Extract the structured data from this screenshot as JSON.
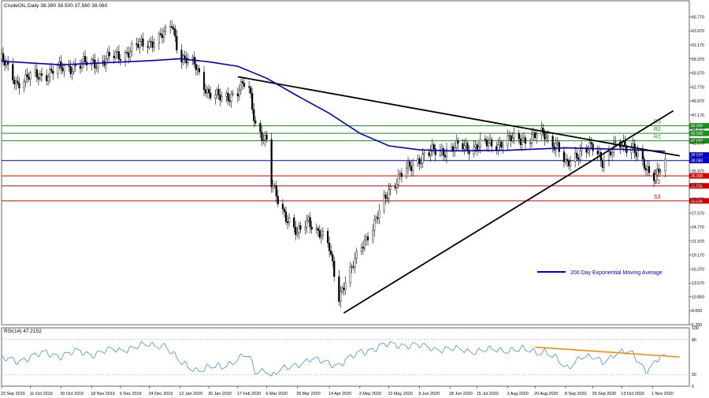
{
  "chart_data": [
    {
      "type": "candlestick",
      "title": "CrudeOIL,Daily  38.390 38.500 37.560 38.060",
      "ylim": [
        5.25,
        69.2
      ],
      "yticks": [
        "66.770",
        "63.970",
        "61.170",
        "58.370",
        "55.570",
        "52.770",
        "49.970",
        "47.170",
        "44.370",
        "41.570",
        "38.770",
        "35.970",
        "33.170",
        "30.370",
        "27.570",
        "24.770",
        "21.970",
        "19.170",
        "16.370",
        "13.570",
        "10.850",
        "8.050",
        "5.250"
      ],
      "xticks": [
        "23 Sep 2019",
        "11 Oct 2019",
        "30 Oct 2019",
        "18 Nov 2019",
        "6 Dec 2019",
        "24 Dec 2019",
        "12 Jan 2020",
        "30 Jan 2020",
        "17 Feb 2020",
        "6 Mar 2020",
        "25 Mar 2020",
        "14 Apr 2020",
        "3 May 2020",
        "21 May 2020",
        "9 Jun 2020",
        "28 Jun 2020",
        "15 Jul 2020",
        "3 Aug 2020",
        "20 Aug 2020",
        "8 Sep 2020",
        "25 Sep 2020",
        "13 Oct 2020",
        "1 Nov 2020"
      ],
      "price_path": [
        [
          "23 Sep 2019",
          58.2
        ],
        [
          "2 Oct 2019",
          53.8
        ],
        [
          "11 Oct 2019",
          54.6
        ],
        [
          "21 Oct 2019",
          55.5
        ],
        [
          "30 Oct 2019",
          56.4
        ],
        [
          "9 Nov 2019",
          57.1
        ],
        [
          "18 Nov 2019",
          57.6
        ],
        [
          "27 Nov 2019",
          58.2
        ],
        [
          "6 Dec 2019",
          59.2
        ],
        [
          "15 Dec 2019",
          60.6
        ],
        [
          "24 Dec 2019",
          61.8
        ],
        [
          "3 Jan 2020",
          63.2
        ],
        [
          "7 Jan 2020",
          65.4
        ],
        [
          "12 Jan 2020",
          59.0
        ],
        [
          "22 Jan 2020",
          56.7
        ],
        [
          "30 Jan 2020",
          51.5
        ],
        [
          "7 Feb 2020",
          50.3
        ],
        [
          "17 Feb 2020",
          52.0
        ],
        [
          "23 Feb 2020",
          53.6
        ],
        [
          "28 Feb 2020",
          45.6
        ],
        [
          "6 Mar 2020",
          41.6
        ],
        [
          "9 Mar 2020",
          33.0
        ],
        [
          "16 Mar 2020",
          28.4
        ],
        [
          "25 Mar 2020",
          23.0
        ],
        [
          "1 Apr 2020",
          26.5
        ],
        [
          "14 Apr 2020",
          20.5
        ],
        [
          "20 Apr 2020",
          11.3
        ],
        [
          "28 Apr 2020",
          16.0
        ],
        [
          "3 May 2020",
          21.0
        ],
        [
          "12 May 2020",
          25.0
        ],
        [
          "21 May 2020",
          32.5
        ],
        [
          "30 May 2020",
          35.4
        ],
        [
          "9 Jun 2020",
          38.6
        ],
        [
          "18 Jun 2020",
          39.8
        ],
        [
          "28 Jun 2020",
          40.4
        ],
        [
          "7 Jul 2020",
          40.8
        ],
        [
          "15 Jul 2020",
          41.0
        ],
        [
          "25 Jul 2020",
          41.3
        ],
        [
          "3 Aug 2020",
          42.0
        ],
        [
          "11 Aug 2020",
          42.4
        ],
        [
          "20 Aug 2020",
          42.8
        ],
        [
          "26 Aug 2020",
          43.2
        ],
        [
          "3 Sep 2020",
          41.0
        ],
        [
          "8 Sep 2020",
          36.8
        ],
        [
          "17 Sep 2020",
          40.2
        ],
        [
          "25 Sep 2020",
          40.3
        ],
        [
          "1 Oct 2020",
          38.2
        ],
        [
          "8 Oct 2020",
          40.6
        ],
        [
          "13 Oct 2020",
          40.8
        ],
        [
          "20 Oct 2020",
          41.2
        ],
        [
          "28 Oct 2020",
          35.9
        ],
        [
          "1 Nov 2020",
          34.6
        ],
        [
          "6 Nov 2020",
          37.3
        ],
        [
          "9 Nov 2020",
          38.06
        ]
      ],
      "ema200_path": [
        [
          "23 Sep 2019",
          57.9
        ],
        [
          "30 Oct 2019",
          57.2
        ],
        [
          "24 Dec 2019",
          58.0
        ],
        [
          "12 Jan 2020",
          58.4
        ],
        [
          "30 Jan 2020",
          57.8
        ],
        [
          "17 Feb 2020",
          56.9
        ],
        [
          "6 Mar 2020",
          54.5
        ],
        [
          "25 Mar 2020",
          51.0
        ],
        [
          "14 Apr 2020",
          47.5
        ],
        [
          "3 May 2020",
          43.5
        ],
        [
          "21 May 2020",
          41.0
        ],
        [
          "9 Jun 2020",
          40.2
        ],
        [
          "28 Jun 2020",
          40.0
        ],
        [
          "3 Aug 2020",
          40.1
        ],
        [
          "8 Sep 2020",
          40.6
        ],
        [
          "13 Oct 2020",
          40.3
        ],
        [
          "9 Nov 2020",
          39.9
        ]
      ],
      "trendlines": [
        {
          "name": "descending",
          "color": "#000000",
          "from": [
            "17 Feb 2020",
            54.8
          ],
          "to": [
            "18 Nov 2020",
            39.0
          ]
        },
        {
          "name": "ascending",
          "color": "#000000",
          "from": [
            "23 Apr 2020",
            7.6
          ],
          "to": [
            "14 Nov 2020",
            48.0
          ]
        }
      ],
      "levels": [
        {
          "label": "R3",
          "value": 45.0,
          "color": "#1a8f1a",
          "tag": "45.000"
        },
        {
          "label": "R2",
          "value": 43.5,
          "color": "#1a8f1a",
          "tag": "43.500"
        },
        {
          "label": "R1",
          "value": 42.0,
          "color": "#1a8f1a",
          "tag": "42.000"
        },
        {
          "label": "",
          "value": 38.06,
          "color": "#0000cc",
          "tag": "38.060",
          "tag2": "38.500"
        },
        {
          "label": "S1",
          "value": 35.0,
          "color": "#d40000",
          "tag": "35.000"
        },
        {
          "label": "S2",
          "value": 33.0,
          "color": "#d40000",
          "tag": "33.000"
        },
        {
          "label": "S3",
          "value": 30.0,
          "color": "#d40000",
          "tag": "30.000"
        }
      ],
      "legend": {
        "label": "200 Day Exponential Moving Average",
        "color": "#0000cc",
        "placement": "bottom-right"
      },
      "colors": {
        "ema": "#0000cc",
        "support": "#d40000",
        "resistance": "#1a8f1a",
        "candle": "#000000"
      }
    },
    {
      "type": "line",
      "title": "RSI(14) 47.2152",
      "ylim": [
        0,
        100
      ],
      "yticks": [
        "100",
        "80",
        "20",
        "0"
      ],
      "rsi_path": [
        [
          "23 Sep 2019",
          46
        ],
        [
          "2 Oct 2019",
          42
        ],
        [
          "11 Oct 2019",
          50
        ],
        [
          "21 Oct 2019",
          55
        ],
        [
          "30 Oct 2019",
          52
        ],
        [
          "9 Nov 2019",
          58
        ],
        [
          "18 Nov 2019",
          55
        ],
        [
          "27 Nov 2019",
          60
        ],
        [
          "6 Dec 2019",
          62
        ],
        [
          "15 Dec 2019",
          68
        ],
        [
          "24 Dec 2019",
          70
        ],
        [
          "3 Jan 2020",
          72
        ],
        [
          "12 Jan 2020",
          40
        ],
        [
          "22 Jan 2020",
          30
        ],
        [
          "30 Jan 2020",
          32
        ],
        [
          "7 Feb 2020",
          34
        ],
        [
          "17 Feb 2020",
          48
        ],
        [
          "23 Feb 2020",
          55
        ],
        [
          "28 Feb 2020",
          25
        ],
        [
          "6 Mar 2020",
          30
        ],
        [
          "9 Mar 2020",
          18
        ],
        [
          "16 Mar 2020",
          28
        ],
        [
          "25 Mar 2020",
          38
        ],
        [
          "1 Apr 2020",
          45
        ],
        [
          "14 Apr 2020",
          40
        ],
        [
          "20 Apr 2020",
          36
        ],
        [
          "28 Apr 2020",
          48
        ],
        [
          "3 May 2020",
          58
        ],
        [
          "12 May 2020",
          64
        ],
        [
          "21 May 2020",
          70
        ],
        [
          "30 May 2020",
          71
        ],
        [
          "9 Jun 2020",
          68
        ],
        [
          "18 Jun 2020",
          65
        ],
        [
          "28 Jun 2020",
          63
        ],
        [
          "7 Jul 2020",
          62
        ],
        [
          "15 Jul 2020",
          61
        ],
        [
          "25 Jul 2020",
          62
        ],
        [
          "3 Aug 2020",
          64
        ],
        [
          "11 Aug 2020",
          63
        ],
        [
          "20 Aug 2020",
          60
        ],
        [
          "26 Aug 2020",
          62
        ],
        [
          "3 Sep 2020",
          45
        ],
        [
          "8 Sep 2020",
          30
        ],
        [
          "17 Sep 2020",
          52
        ],
        [
          "25 Sep 2020",
          48
        ],
        [
          "1 Oct 2020",
          42
        ],
        [
          "8 Oct 2020",
          55
        ],
        [
          "13 Oct 2020",
          58
        ],
        [
          "20 Oct 2020",
          54
        ],
        [
          "28 Oct 2020",
          28
        ],
        [
          "1 Nov 2020",
          35
        ],
        [
          "6 Nov 2020",
          48
        ],
        [
          "9 Nov 2020",
          47
        ]
      ],
      "rsi_trendline": {
        "color": "#ff8c00",
        "from": [
          "20 Aug 2020",
          67
        ],
        "to": [
          "18 Nov 2020",
          50
        ]
      },
      "colors": {
        "rsi": "#4a8fd6"
      }
    }
  ]
}
